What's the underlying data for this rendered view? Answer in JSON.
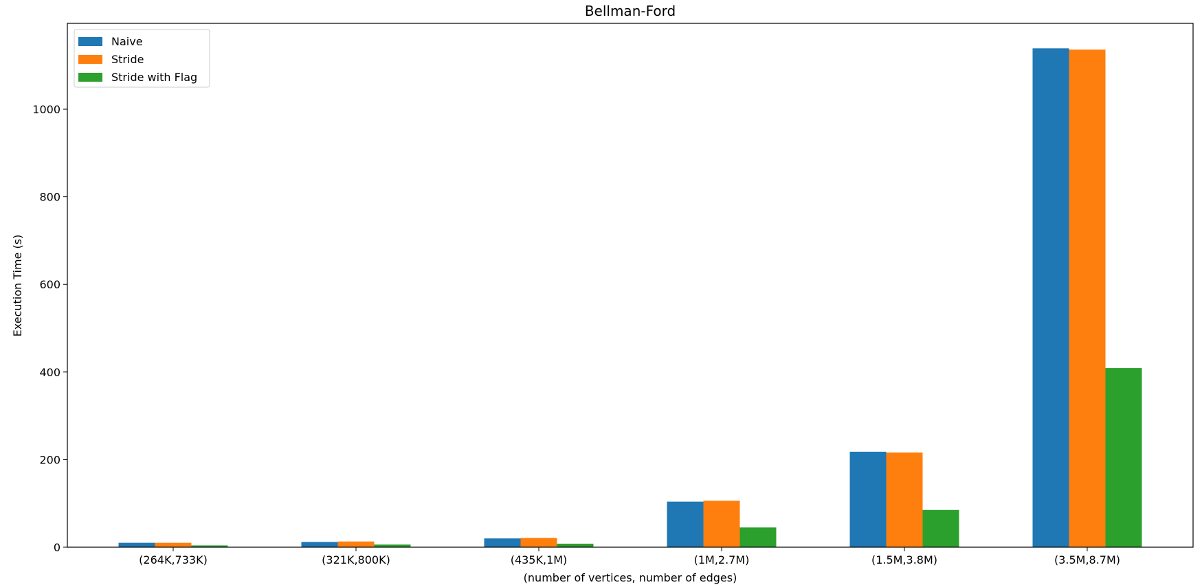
{
  "chart_data": {
    "type": "bar",
    "title": "Bellman-Ford",
    "xlabel": "(number of vertices, number of edges)",
    "ylabel": "Execution Time (s)",
    "categories": [
      "(264K,733K)",
      "(321K,800K)",
      "(435K,1M)",
      "(1M,2.7M)",
      "(1.5M,3.8M)",
      "(3.5M,8.7M)"
    ],
    "ylim": [
      0,
      1196
    ],
    "yticks": [
      0,
      200,
      400,
      600,
      800,
      1000
    ],
    "grid": false,
    "legend_position": "upper left",
    "series": [
      {
        "name": "Naive",
        "color": "#1f77b4",
        "values": [
          10,
          12,
          20,
          104,
          218,
          1139
        ]
      },
      {
        "name": "Stride",
        "color": "#ff7f0e",
        "values": [
          10,
          13,
          21,
          106,
          216,
          1136
        ]
      },
      {
        "name": "Stride with Flag",
        "color": "#2ca02c",
        "values": [
          4,
          6,
          8,
          45,
          85,
          409
        ]
      }
    ]
  }
}
